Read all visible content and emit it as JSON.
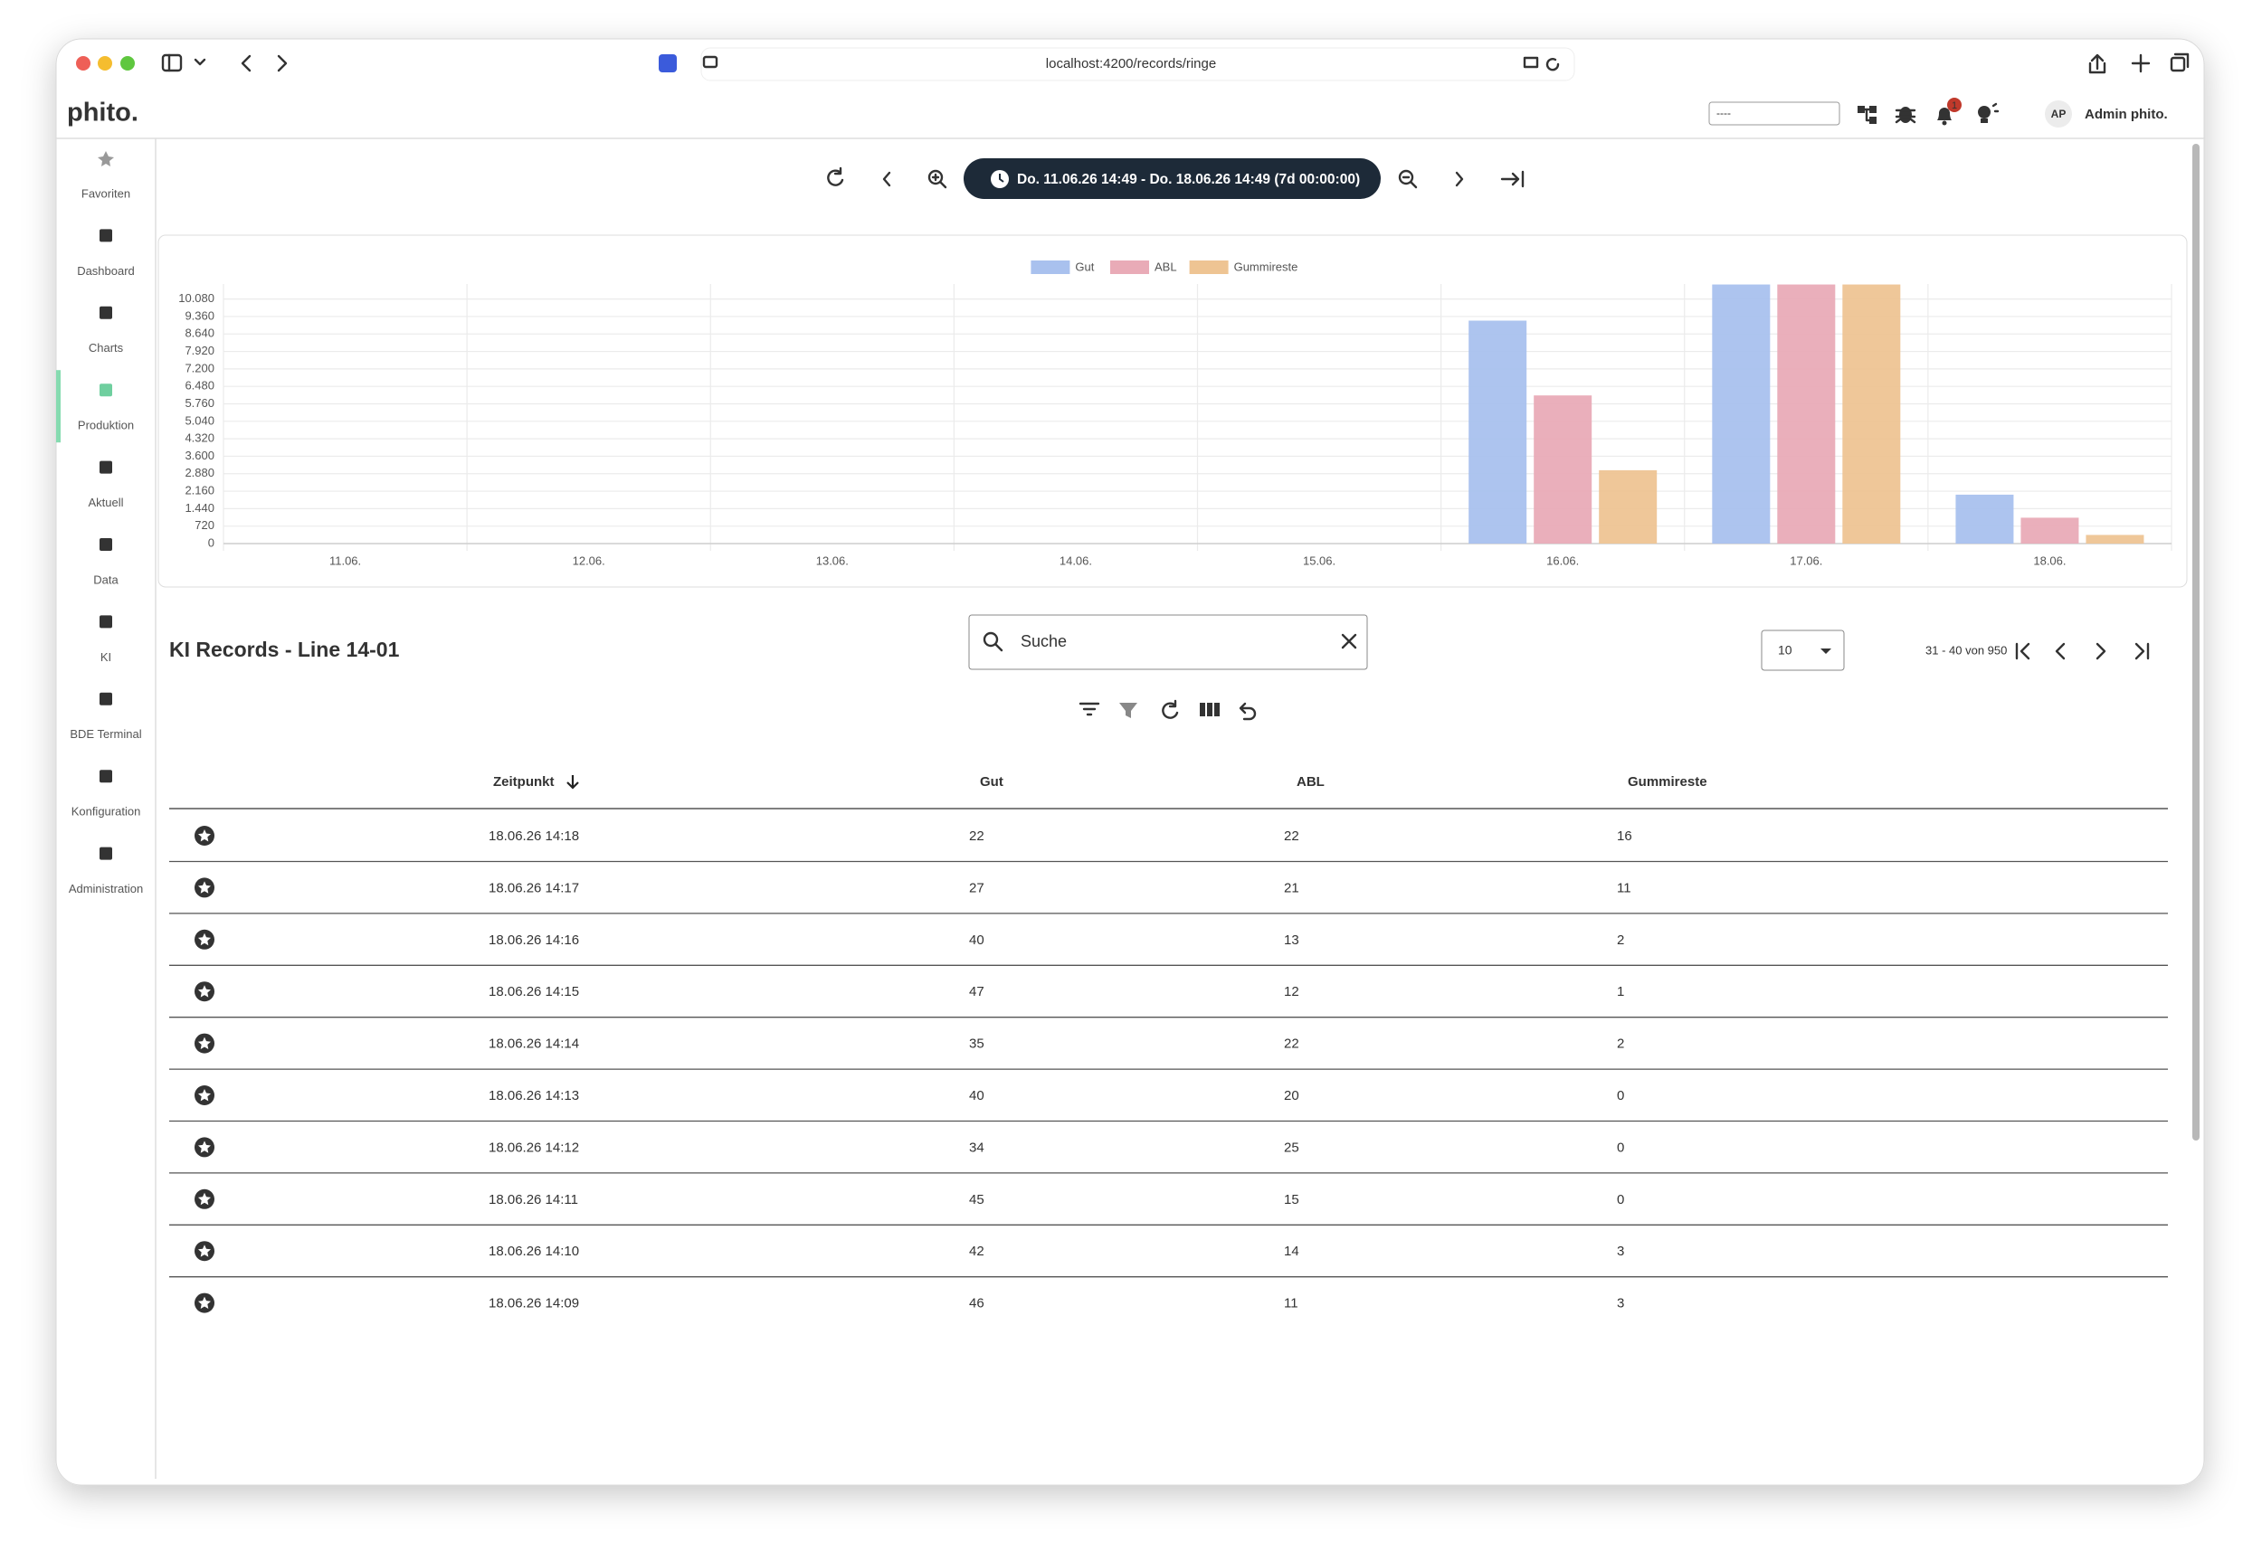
{
  "browser": {
    "url": "localhost:4200/records/ringe"
  },
  "header": {
    "logo": "phito.",
    "search_placeholder": "----",
    "notifications": 1,
    "avatar": "AP",
    "user": "Admin phito."
  },
  "sidebar": {
    "active": 3,
    "items": [
      "Favoriten",
      "Dashboard",
      "Charts",
      "Produktion",
      "Aktuell",
      "Data",
      "KI",
      "BDE Terminal",
      "Konfiguration",
      "Administration"
    ]
  },
  "time_range": "Do. 11.06.26 14:49 - Do. 18.06.26 14:49 (7d 00:00:00)",
  "chart_data": {
    "type": "bar",
    "categories": [
      "11.06.",
      "12.06.",
      "13.06.",
      "14.06.",
      "15.06.",
      "16.06.",
      "17.06.",
      "18.06."
    ],
    "series": [
      {
        "name": "Gut",
        "color": "#a9c1ee",
        "values": [
          0,
          0,
          0,
          0,
          0,
          9190,
          10680,
          2016
        ]
      },
      {
        "name": "ABL",
        "color": "#e9abb7",
        "values": [
          0,
          0,
          0,
          0,
          0,
          6107,
          10680,
          1067
        ]
      },
      {
        "name": "Gummireste",
        "color": "#eec493",
        "values": [
          0,
          0,
          0,
          0,
          0,
          3024,
          10680,
          356
        ]
      }
    ],
    "ylim": [
      0,
      10700
    ],
    "yticks": [
      0,
      720,
      {
        "value": 1440,
        "label": "1.440"
      },
      {
        "value": 2160,
        "label": "2.160"
      },
      {
        "value": 2880,
        "label": "2.880"
      },
      {
        "value": 3600,
        "label": "3.600"
      },
      {
        "value": 4320,
        "label": "4.320"
      },
      {
        "value": 5040,
        "label": "5.040"
      },
      {
        "value": 5760,
        "label": "5.760"
      },
      {
        "value": 6480,
        "label": "6.480"
      },
      {
        "value": 7200,
        "label": "7.200"
      },
      {
        "value": 7920,
        "label": "7.920"
      },
      {
        "value": 8640,
        "label": "8.640"
      },
      {
        "value": 9360,
        "label": "9.360"
      },
      {
        "value": 10080,
        "label": "10.080"
      }
    ],
    "grid": true,
    "legend": "top"
  },
  "records": {
    "title": "KI Records - Line 14-01",
    "search_placeholder": "Suche",
    "page_size": 10,
    "range": "31 - 40 von 950",
    "columns": [
      "Zeitpunkt",
      "Gut",
      "ABL",
      "Gummireste"
    ],
    "rows": [
      [
        "18.06.26 14:18",
        22,
        22,
        16
      ],
      [
        "18.06.26 14:17",
        27,
        21,
        11
      ],
      [
        "18.06.26 14:16",
        40,
        13,
        2
      ],
      [
        "18.06.26 14:15",
        47,
        12,
        1
      ],
      [
        "18.06.26 14:14",
        35,
        22,
        2
      ],
      [
        "18.06.26 14:13",
        40,
        20,
        0
      ],
      [
        "18.06.26 14:12",
        34,
        25,
        0
      ],
      [
        "18.06.26 14:11",
        45,
        15,
        0
      ],
      [
        "18.06.26 14:10",
        42,
        14,
        3
      ],
      [
        "18.06.26 14:09",
        46,
        11,
        3
      ]
    ]
  }
}
